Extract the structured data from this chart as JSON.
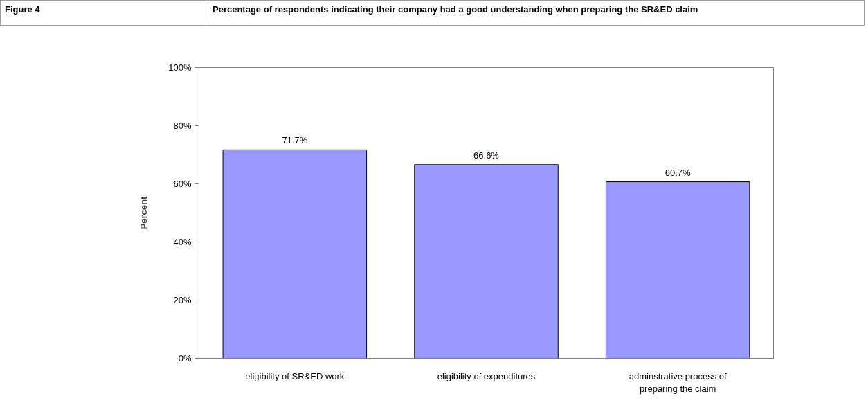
{
  "chart_data": {
    "type": "bar",
    "title": "Percentage of respondents indicating their company had a good understanding when preparing the SR&ED claim",
    "annotations": [
      "Figure 4"
    ],
    "ylabel": "Percent",
    "categories": [
      "eligibility of SR&ED work",
      "eligibility of expenditures",
      "adminstrative process of preparing the claim"
    ],
    "values": [
      71.7,
      66.6,
      60.7
    ],
    "value_labels": [
      "71.7%",
      "66.6%",
      "60.7%"
    ],
    "color": "#9999ff",
    "ylim": [
      0,
      100
    ],
    "yticks": [
      {
        "value": 0,
        "label": "0%"
      },
      {
        "value": 20,
        "label": "20%"
      },
      {
        "value": 40,
        "label": "40%"
      },
      {
        "value": 60,
        "label": "60%"
      },
      {
        "value": 80,
        "label": "80%"
      },
      {
        "value": 100,
        "label": "100%"
      }
    ],
    "grid": false
  }
}
